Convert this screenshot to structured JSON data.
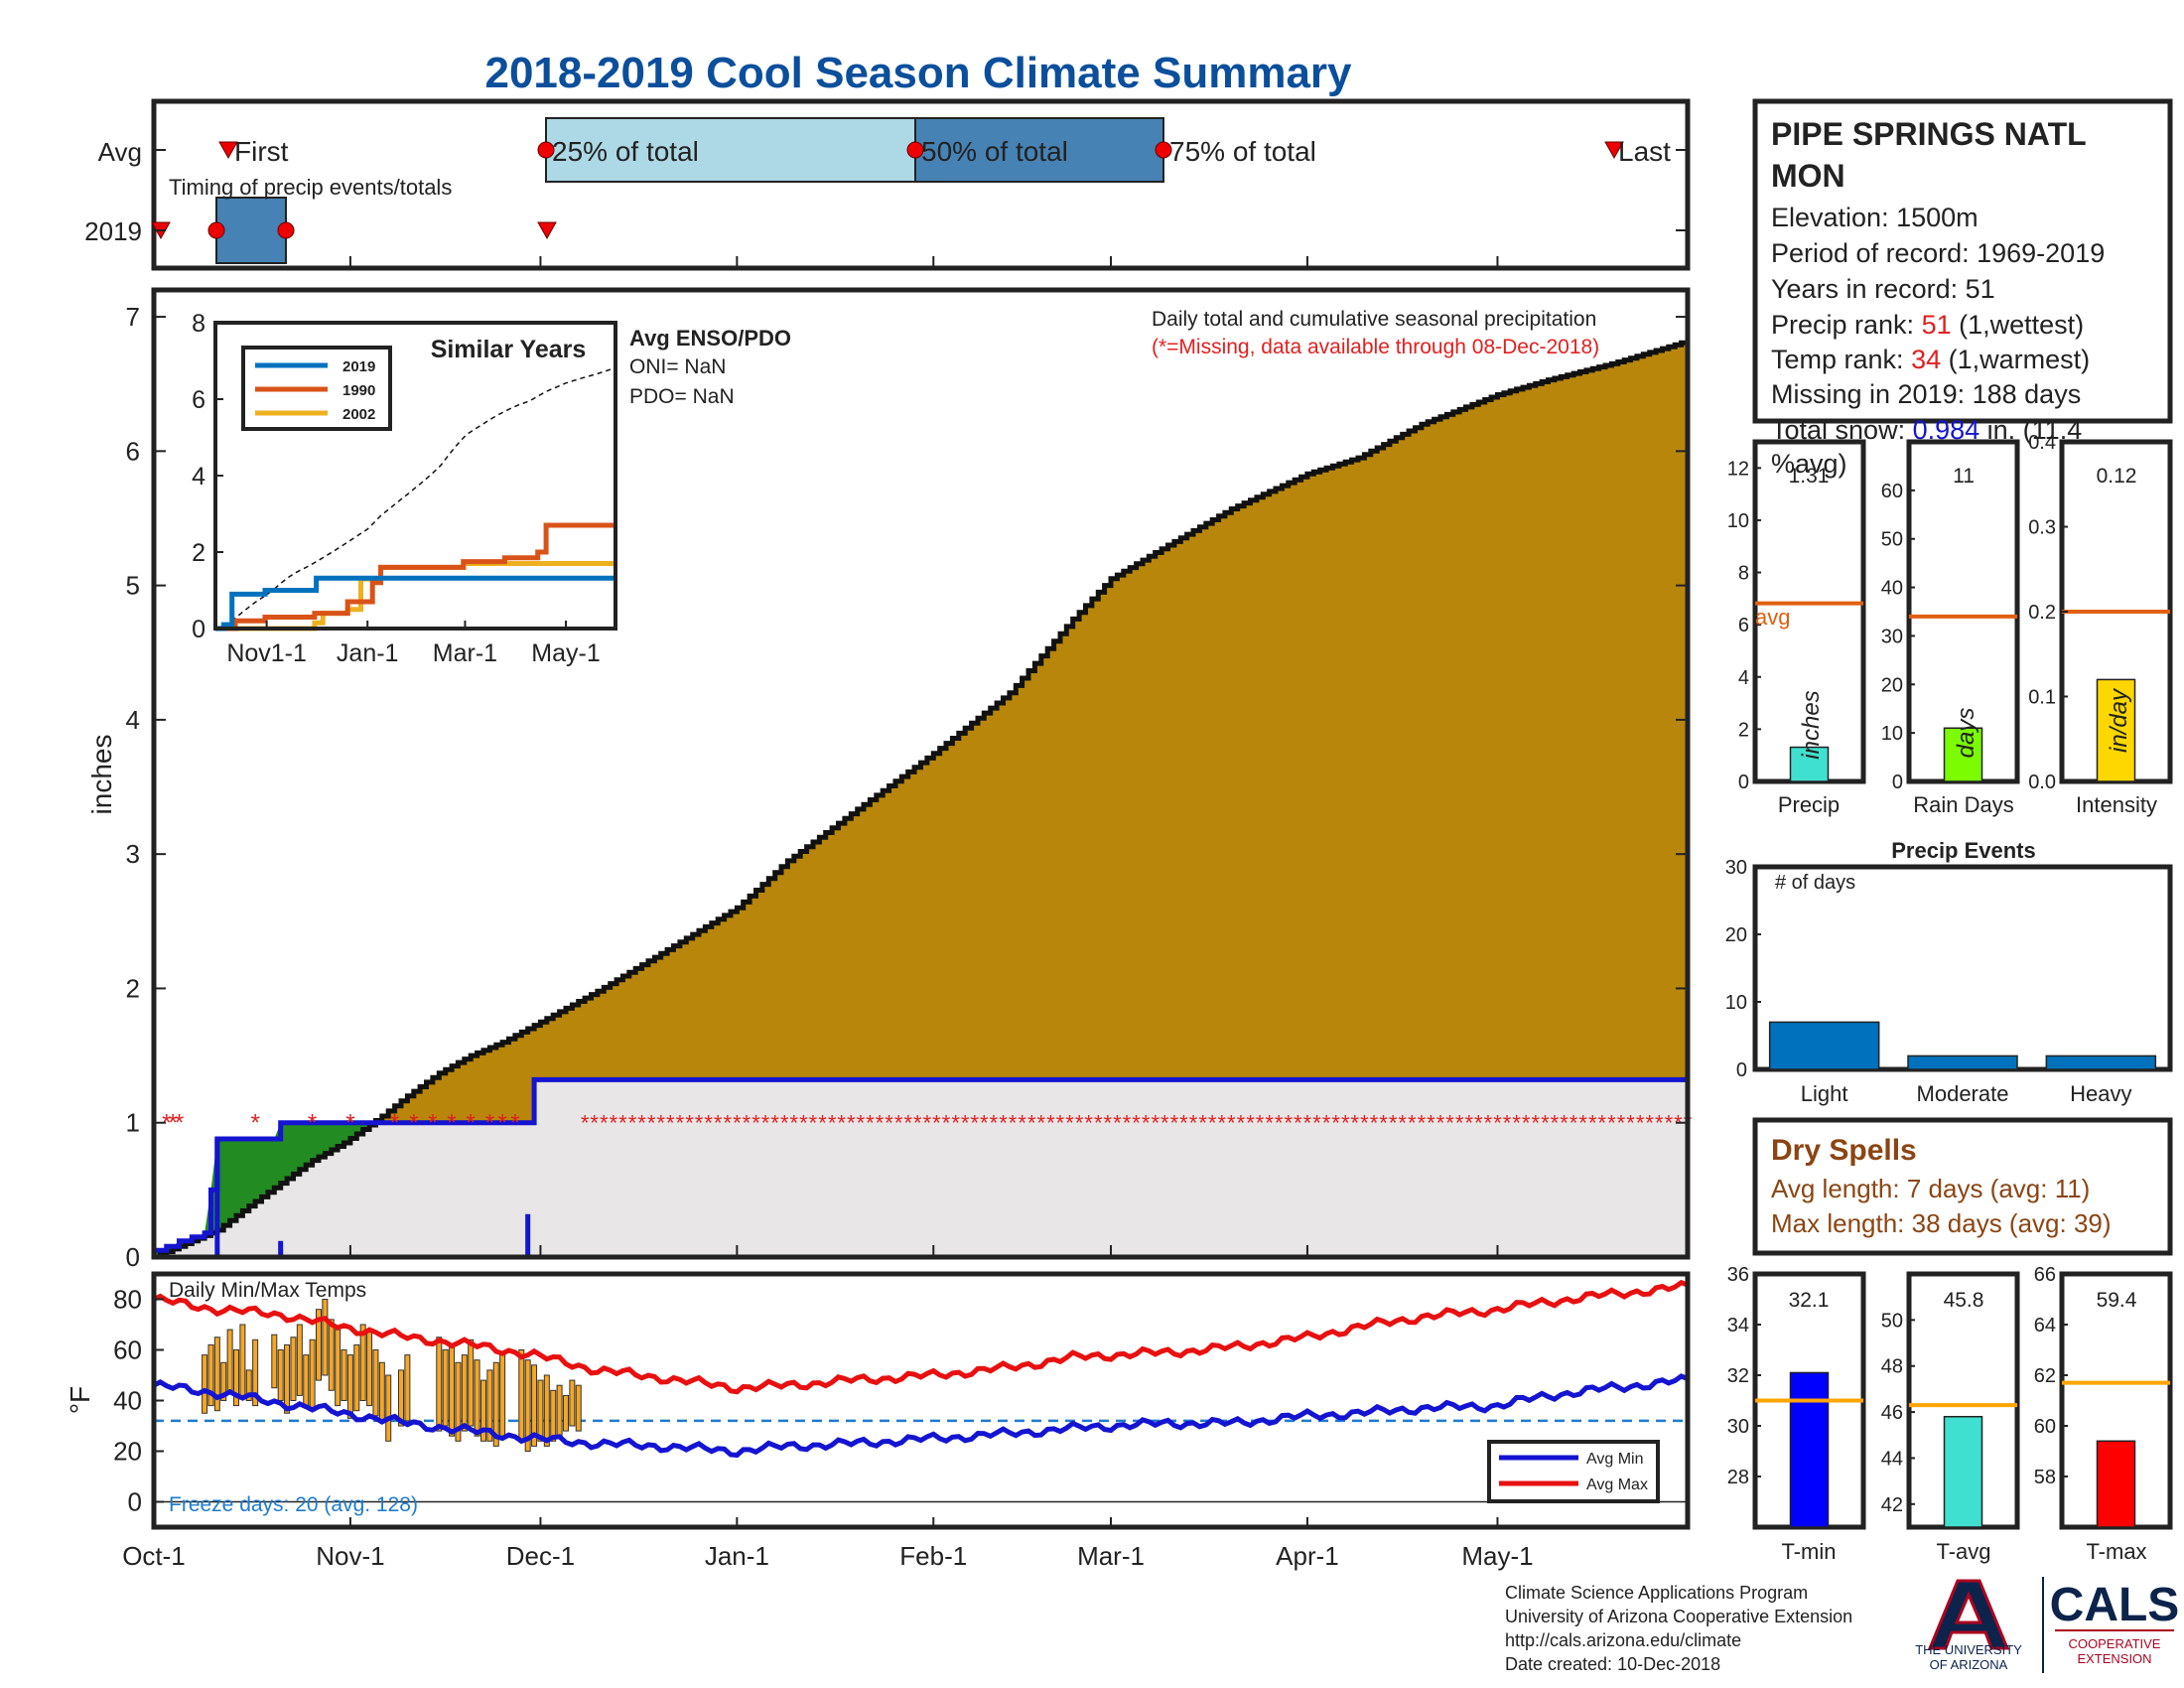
{
  "title": "2018-2019 Cool Season Climate Summary",
  "timing": {
    "row_avg": "Avg",
    "row_year": "2019",
    "caption": "Timing of precip events/totals",
    "first_label": "First",
    "p25_label": "25% of total",
    "p50_label": "50% of total",
    "p75_label": "75% of total",
    "last_label": "Last"
  },
  "station": {
    "name_line1": "PIPE SPRINGS NATL",
    "name_line2": "MON",
    "elevation": "Elevation: 1500m",
    "period": "Period of record: 1969-2019",
    "years": "Years in record: 51",
    "precip_rank_label": "Precip rank: ",
    "precip_rank_value": "51",
    "precip_rank_note": " (1,wettest)",
    "temp_rank_label": "Temp rank: ",
    "temp_rank_value": "34",
    "temp_rank_note": " (1,warmest)",
    "missing": "Missing in 2019: 188 days",
    "snow_label": "Total snow: ",
    "snow_value": "0.984",
    "snow_note": " in. (11.4",
    "snow_pct": "%avg)"
  },
  "main": {
    "annotation1": "Daily total and cumulative seasonal precipitation",
    "annotation2": "(*=Missing, data available through 08-Dec-2018)",
    "ylabel": "inches",
    "enso_title": "Avg ENSO/PDO",
    "oni": "ONI= NaN",
    "pdo": "PDO= NaN"
  },
  "inset": {
    "title": "Similar Years",
    "legend": [
      "2019",
      "1990",
      "2002"
    ],
    "xticks": [
      "Nov1-1",
      "Jan-1",
      "Mar-1",
      "May-1"
    ],
    "yticks": [
      "0",
      "2",
      "4",
      "6",
      "8"
    ]
  },
  "bars": {
    "precip": {
      "label": "Precip",
      "value_text": "1.31",
      "unit": "inches",
      "avg_label": "avg"
    },
    "raindays": {
      "label": "Rain Days",
      "value_text": "11",
      "unit": "days"
    },
    "intensity": {
      "label": "Intensity",
      "value_text": "0.12",
      "unit": "in/day"
    }
  },
  "events": {
    "title": "Precip Events",
    "ylabel": "# of days"
  },
  "dry": {
    "title": "Dry Spells",
    "avg": "Avg length: 7 days (avg: 11)",
    "max": "Max length: 38 days (avg: 39)"
  },
  "temps": {
    "title": "Daily Min/Max Temps",
    "ylabel": "°F",
    "freeze": "Freeze days: 20 (avg. 128)",
    "legend_min": "Avg Min",
    "legend_max": "Avg Max",
    "tmin": {
      "label": "T-min",
      "value_text": "32.1"
    },
    "tavg": {
      "label": "T-avg",
      "value_text": "45.8"
    },
    "tmax": {
      "label": "T-max",
      "value_text": "59.4"
    }
  },
  "footer": {
    "line1": "Climate Science Applications Program",
    "line2": "University of Arizona Cooperative Extension",
    "line3": "http://cals.arizona.edu/climate",
    "line4": " Date created: 10-Dec-2018",
    "ua_line1": "THE UNIVERSITY",
    "ua_line2": "OF ARIZONA",
    "cals": "CALS",
    "coop1": "COOPERATIVE",
    "coop2": "EXTENSION"
  },
  "colors": {
    "title": "#0b4f9c",
    "avg_fill": "#b8860b",
    "surplus": "#228b22",
    "missing_fill": "#e8e6e6",
    "line2019": "#1414d2",
    "star": "#e02020",
    "minline": "#1414d2",
    "maxline": "#e81010",
    "orange": "#f5a623",
    "rank": "#e02020",
    "snow": "#1414d2",
    "dry": "#8b4513"
  },
  "chart_data": [
    {
      "type": "area",
      "name": "cumulative",
      "ylim": [
        0,
        7.2
      ],
      "xticks": [
        "Oct-1",
        "Nov-1",
        "Dec-1",
        "Jan-1",
        "Feb-1",
        "Mar-1",
        "Apr-1",
        "May-1"
      ],
      "xtick_days": [
        0,
        31,
        61,
        92,
        123,
        151,
        182,
        212
      ],
      "yticks": [
        0,
        1,
        2,
        3,
        4,
        5,
        6,
        7
      ],
      "season_days": 242,
      "avg_cumulative": {
        "days": [
          0,
          5,
          10,
          15,
          20,
          25,
          30,
          36,
          40,
          45,
          50,
          55,
          61,
          70,
          80,
          92,
          100,
          110,
          123,
          135,
          145,
          151,
          160,
          170,
          182,
          190,
          200,
          212,
          220,
          230,
          242
        ],
        "values": [
          0.0,
          0.1,
          0.2,
          0.38,
          0.55,
          0.72,
          0.85,
          1.05,
          1.2,
          1.37,
          1.5,
          1.6,
          1.75,
          1.98,
          2.26,
          2.6,
          2.95,
          3.3,
          3.75,
          4.2,
          4.75,
          5.05,
          5.3,
          5.57,
          5.83,
          5.95,
          6.2,
          6.42,
          6.53,
          6.65,
          6.82
        ]
      },
      "observed_2019": {
        "days": [
          0,
          2,
          4,
          6,
          8,
          9,
          10,
          11,
          19,
          20,
          27,
          30,
          40,
          50,
          59,
          60,
          61,
          242
        ],
        "values": [
          0.05,
          0.08,
          0.12,
          0.15,
          0.18,
          0.5,
          0.88,
          0.88,
          0.88,
          1.0,
          1.0,
          1.0,
          1.0,
          1.0,
          1.0,
          1.32,
          1.32,
          1.32
        ]
      },
      "daily_totals": [
        {
          "day": 10,
          "value": 0.88
        },
        {
          "day": 20,
          "value": 0.12
        },
        {
          "day": 59,
          "value": 0.32
        }
      ],
      "missing_star_days_early": [
        2,
        3,
        4,
        16,
        25,
        31,
        38,
        41,
        44,
        47,
        50,
        53,
        55,
        57
      ],
      "missing_start_day": 68,
      "missing_end_day": 242
    },
    {
      "type": "line",
      "name": "similar_years",
      "xticks": [
        "Nov1-1",
        "Jan-1",
        "Mar-1",
        "May-1"
      ],
      "ylim": [
        0,
        8
      ],
      "series": [
        {
          "name": "2019",
          "days": [
            0,
            5,
            10,
            15,
            30,
            50,
            60,
            61,
            242
          ],
          "values": [
            0,
            0.1,
            0.9,
            0.9,
            1.0,
            1.0,
            1.0,
            1.32,
            1.32
          ]
        },
        {
          "name": "1990",
          "days": [
            0,
            12,
            30,
            60,
            80,
            95,
            100,
            150,
            175,
            195,
            200,
            210,
            242
          ],
          "values": [
            0,
            0.2,
            0.3,
            0.4,
            0.7,
            1.2,
            1.6,
            1.75,
            1.85,
            2.0,
            2.7,
            2.7,
            2.7
          ]
        },
        {
          "name": "2002",
          "days": [
            0,
            60,
            65,
            80,
            88,
            100,
            150,
            242
          ],
          "values": [
            0,
            0.15,
            0.4,
            0.5,
            1.3,
            1.6,
            1.7,
            1.7
          ]
        }
      ],
      "avg_dashed_values_at_end": 6.8
    },
    {
      "type": "bar",
      "name": "precip",
      "values": [
        1.31
      ],
      "avg": 6.82,
      "ylim": [
        0,
        13
      ],
      "yticks": [
        0,
        2,
        4,
        6,
        8,
        10,
        12
      ]
    },
    {
      "type": "bar",
      "name": "rain_days",
      "values": [
        11
      ],
      "avg": 34,
      "ylim": [
        0,
        70
      ],
      "yticks": [
        0,
        10,
        20,
        30,
        40,
        50,
        60
      ]
    },
    {
      "type": "bar",
      "name": "intensity",
      "values": [
        0.12
      ],
      "avg": 0.2,
      "ylim": [
        0,
        0.4
      ],
      "yticks": [
        0,
        0.1,
        0.2,
        0.3,
        0.4
      ]
    },
    {
      "type": "bar",
      "name": "precip_events",
      "categories": [
        "Light",
        "Moderate",
        "Heavy"
      ],
      "values": [
        7,
        2,
        2
      ],
      "ylim": [
        0,
        30
      ],
      "yticks": [
        0,
        10,
        20,
        30
      ]
    },
    {
      "type": "line",
      "name": "temps",
      "ylim": [
        -10,
        90
      ],
      "yticks": [
        0,
        20,
        40,
        60,
        80
      ],
      "freeze_line": 32,
      "avg_max": {
        "days": [
          0,
          10,
          20,
          30,
          40,
          50,
          60,
          70,
          80,
          92,
          100,
          110,
          123,
          135,
          145,
          151,
          160,
          170,
          182,
          190,
          200,
          212,
          220,
          230,
          242
        ],
        "values": [
          80,
          76,
          74,
          69,
          65,
          62,
          58,
          52,
          49,
          45,
          46,
          48,
          50,
          53,
          57,
          58,
          59,
          61,
          65,
          69,
          73,
          76,
          79,
          82,
          85
        ]
      },
      "avg_min": {
        "days": [
          0,
          10,
          20,
          30,
          40,
          50,
          60,
          70,
          80,
          92,
          100,
          110,
          123,
          135,
          145,
          151,
          160,
          170,
          182,
          190,
          200,
          212,
          220,
          230,
          242
        ],
        "values": [
          46,
          43,
          39,
          35,
          31,
          28,
          25,
          23,
          22,
          20,
          22,
          23,
          25,
          27,
          29,
          30,
          31,
          31,
          34,
          35,
          37,
          38,
          42,
          45,
          48
        ]
      },
      "observed": [
        [
          8,
          58,
          35
        ],
        [
          9,
          62,
          38
        ],
        [
          10,
          65,
          36
        ],
        [
          11,
          55,
          40
        ],
        [
          12,
          68,
          44
        ],
        [
          13,
          60,
          38
        ],
        [
          14,
          70,
          42
        ],
        [
          15,
          52,
          40
        ],
        [
          16,
          64,
          38
        ],
        [
          19,
          66,
          45
        ],
        [
          20,
          60,
          40
        ],
        [
          21,
          62,
          35
        ],
        [
          22,
          65,
          40
        ],
        [
          23,
          70,
          42
        ],
        [
          24,
          58,
          38
        ],
        [
          25,
          64,
          36
        ],
        [
          26,
          76,
          48
        ],
        [
          27,
          80,
          50
        ],
        [
          28,
          72,
          44
        ],
        [
          29,
          68,
          38
        ],
        [
          30,
          60,
          40
        ],
        [
          31,
          58,
          33
        ],
        [
          32,
          62,
          36
        ],
        [
          33,
          70,
          40
        ],
        [
          34,
          68,
          38
        ],
        [
          35,
          60,
          34
        ],
        [
          36,
          55,
          32
        ],
        [
          37,
          50,
          24
        ],
        [
          39,
          52,
          30
        ],
        [
          40,
          58,
          32
        ],
        [
          45,
          65,
          28
        ],
        [
          46,
          60,
          30
        ],
        [
          47,
          62,
          26
        ],
        [
          48,
          55,
          24
        ],
        [
          49,
          58,
          28
        ],
        [
          50,
          64,
          30
        ],
        [
          51,
          56,
          26
        ],
        [
          52,
          48,
          24
        ],
        [
          53,
          52,
          24
        ],
        [
          54,
          55,
          22
        ],
        [
          55,
          58,
          26
        ],
        [
          58,
          60,
          24
        ],
        [
          59,
          56,
          20
        ],
        [
          60,
          54,
          22
        ],
        [
          61,
          48,
          24
        ],
        [
          62,
          50,
          22
        ],
        [
          63,
          44,
          24
        ],
        [
          64,
          46,
          26
        ],
        [
          65,
          42,
          28
        ],
        [
          66,
          48,
          30
        ],
        [
          67,
          46,
          28
        ]
      ]
    },
    {
      "type": "bar",
      "name": "T-min",
      "values": [
        32.1
      ],
      "avg": 31,
      "ylim": [
        26,
        36
      ],
      "yticks": [
        28,
        30,
        32,
        34,
        36
      ]
    },
    {
      "type": "bar",
      "name": "T-avg",
      "values": [
        45.8
      ],
      "avg": 46.3,
      "ylim": [
        41,
        52
      ],
      "yticks": [
        42,
        44,
        46,
        48,
        50
      ]
    },
    {
      "type": "bar",
      "name": "T-max",
      "values": [
        59.4
      ],
      "avg": 61.7,
      "ylim": [
        56,
        66
      ],
      "yticks": [
        58,
        60,
        62,
        64,
        66
      ]
    }
  ]
}
